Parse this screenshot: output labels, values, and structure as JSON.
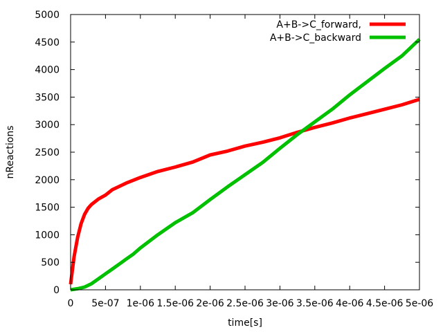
{
  "chart_data": {
    "type": "line",
    "title": "",
    "xlabel": "time[s]",
    "ylabel": "nReactions",
    "xlim": [
      0,
      5e-06
    ],
    "ylim": [
      0,
      5000
    ],
    "x_ticks": [
      {
        "value": 0,
        "label": "0"
      },
      {
        "value": 5e-07,
        "label": "5e-07"
      },
      {
        "value": 1e-06,
        "label": "1e-06"
      },
      {
        "value": 1.5e-06,
        "label": "1.5e-06"
      },
      {
        "value": 2e-06,
        "label": "2e-06"
      },
      {
        "value": 2.5e-06,
        "label": "2.5e-06"
      },
      {
        "value": 3e-06,
        "label": "3e-06"
      },
      {
        "value": 3.5e-06,
        "label": "3.5e-06"
      },
      {
        "value": 4e-06,
        "label": "4e-06"
      },
      {
        "value": 4.5e-06,
        "label": "4.5e-06"
      },
      {
        "value": 5e-06,
        "label": "5e-06"
      }
    ],
    "y_ticks": [
      {
        "value": 0,
        "label": "0"
      },
      {
        "value": 500,
        "label": "500"
      },
      {
        "value": 1000,
        "label": "1000"
      },
      {
        "value": 1500,
        "label": "1500"
      },
      {
        "value": 2000,
        "label": "2000"
      },
      {
        "value": 2500,
        "label": "2500"
      },
      {
        "value": 3000,
        "label": "3000"
      },
      {
        "value": 3500,
        "label": "3500"
      },
      {
        "value": 4000,
        "label": "4000"
      },
      {
        "value": 4500,
        "label": "4500"
      },
      {
        "value": 5000,
        "label": "5000"
      }
    ],
    "grid": false,
    "legend_position": "top-right",
    "series": [
      {
        "name": "A+B->C_forward,",
        "color": "#ff0000",
        "points": [
          [
            0,
            100
          ],
          [
            5e-08,
            600
          ],
          [
            1e-07,
            950
          ],
          [
            1.5e-07,
            1200
          ],
          [
            2e-07,
            1370
          ],
          [
            2.5e-07,
            1480
          ],
          [
            3e-07,
            1550
          ],
          [
            4e-07,
            1650
          ],
          [
            5e-07,
            1720
          ],
          [
            6e-07,
            1820
          ],
          [
            7e-07,
            1880
          ],
          [
            8e-07,
            1940
          ],
          [
            9e-07,
            1990
          ],
          [
            1e-06,
            2040
          ],
          [
            1.25e-06,
            2150
          ],
          [
            1.5e-06,
            2230
          ],
          [
            1.75e-06,
            2320
          ],
          [
            2e-06,
            2450
          ],
          [
            2.25e-06,
            2520
          ],
          [
            2.5e-06,
            2610
          ],
          [
            2.75e-06,
            2680
          ],
          [
            3e-06,
            2760
          ],
          [
            3.25e-06,
            2860
          ],
          [
            3.5e-06,
            2950
          ],
          [
            3.75e-06,
            3030
          ],
          [
            4e-06,
            3120
          ],
          [
            4.25e-06,
            3200
          ],
          [
            4.5e-06,
            3280
          ],
          [
            4.75e-06,
            3360
          ],
          [
            5e-06,
            3460
          ]
        ]
      },
      {
        "name": "A+B->C_backward",
        "color": "#00c000",
        "points": [
          [
            0,
            0
          ],
          [
            1e-07,
            20
          ],
          [
            2e-07,
            50
          ],
          [
            3e-07,
            110
          ],
          [
            4e-07,
            200
          ],
          [
            5e-07,
            290
          ],
          [
            6e-07,
            380
          ],
          [
            7e-07,
            470
          ],
          [
            8e-07,
            560
          ],
          [
            9e-07,
            650
          ],
          [
            1e-06,
            760
          ],
          [
            1.25e-06,
            1000
          ],
          [
            1.5e-06,
            1220
          ],
          [
            1.75e-06,
            1400
          ],
          [
            2e-06,
            1640
          ],
          [
            2.25e-06,
            1870
          ],
          [
            2.5e-06,
            2090
          ],
          [
            2.75e-06,
            2310
          ],
          [
            3e-06,
            2570
          ],
          [
            3.25e-06,
            2820
          ],
          [
            3.5e-06,
            3050
          ],
          [
            3.75e-06,
            3280
          ],
          [
            4e-06,
            3540
          ],
          [
            4.25e-06,
            3780
          ],
          [
            4.5e-06,
            4020
          ],
          [
            4.75e-06,
            4250
          ],
          [
            5e-06,
            4550
          ]
        ]
      }
    ]
  }
}
